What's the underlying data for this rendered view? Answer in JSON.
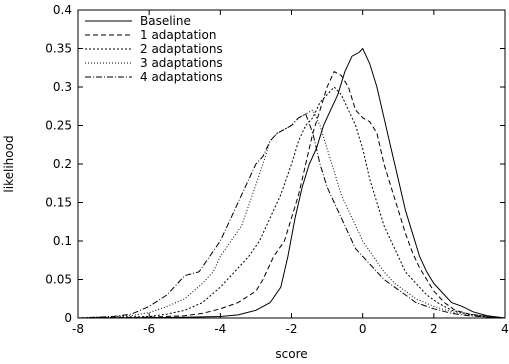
{
  "chart_data": {
    "type": "line",
    "title": "",
    "xlabel": "score",
    "ylabel": "likelihood",
    "xlim": [
      -8,
      4
    ],
    "ylim": [
      0,
      0.4
    ],
    "xticks": [
      -8,
      -6,
      -4,
      -2,
      0,
      2,
      4
    ],
    "yticks": [
      0,
      0.05,
      0.1,
      0.15,
      0.2,
      0.25,
      0.3,
      0.35,
      0.4
    ],
    "legend_position": "top-left",
    "grid": false,
    "series": [
      {
        "name": "Baseline",
        "dash": "solid",
        "x": [
          -8,
          -6,
          -5,
          -4,
          -3.5,
          -3,
          -2.6,
          -2.3,
          -2.1,
          -1.9,
          -1.7,
          -1.5,
          -1.3,
          -1.1,
          -0.9,
          -0.7,
          -0.5,
          -0.3,
          -0.1,
          0,
          0.2,
          0.4,
          0.6,
          0.8,
          1.0,
          1.2,
          1.4,
          1.6,
          1.8,
          2.0,
          2.2,
          2.5,
          2.8,
          3.1,
          3.5,
          4
        ],
        "y": [
          0,
          0.0005,
          0.001,
          0.002,
          0.004,
          0.01,
          0.02,
          0.04,
          0.08,
          0.13,
          0.17,
          0.2,
          0.22,
          0.25,
          0.27,
          0.29,
          0.32,
          0.34,
          0.345,
          0.35,
          0.33,
          0.3,
          0.26,
          0.22,
          0.18,
          0.14,
          0.11,
          0.08,
          0.06,
          0.045,
          0.035,
          0.02,
          0.015,
          0.008,
          0.003,
          0
        ]
      },
      {
        "name": "1 adaptation",
        "dash": "5,3",
        "x": [
          -8,
          -6,
          -5,
          -4.5,
          -4,
          -3.5,
          -3,
          -2.8,
          -2.5,
          -2.2,
          -2.0,
          -1.8,
          -1.6,
          -1.4,
          -1.2,
          -1.0,
          -0.8,
          -0.6,
          -0.4,
          -0.2,
          0,
          0.2,
          0.4,
          0.6,
          0.8,
          1.0,
          1.2,
          1.4,
          1.6,
          1.8,
          2.0,
          2.3,
          2.6,
          3.0,
          3.5,
          4
        ],
        "y": [
          0,
          0.001,
          0.003,
          0.006,
          0.012,
          0.02,
          0.035,
          0.05,
          0.08,
          0.1,
          0.13,
          0.16,
          0.2,
          0.24,
          0.27,
          0.3,
          0.32,
          0.315,
          0.3,
          0.27,
          0.26,
          0.255,
          0.24,
          0.2,
          0.17,
          0.14,
          0.11,
          0.085,
          0.065,
          0.05,
          0.035,
          0.02,
          0.01,
          0.005,
          0.002,
          0
        ]
      },
      {
        "name": "2 adaptations",
        "dash": "2,2",
        "x": [
          -8,
          -6,
          -5.5,
          -5,
          -4.5,
          -4,
          -3.6,
          -3.2,
          -2.9,
          -2.6,
          -2.3,
          -2.0,
          -1.8,
          -1.6,
          -1.4,
          -1.2,
          -1.0,
          -0.8,
          -0.6,
          -0.4,
          -0.2,
          0,
          0.2,
          0.4,
          0.6,
          0.8,
          1.0,
          1.2,
          1.5,
          1.8,
          2.1,
          2.5,
          3.0,
          3.5,
          4
        ],
        "y": [
          0,
          0.002,
          0.005,
          0.01,
          0.02,
          0.04,
          0.06,
          0.08,
          0.1,
          0.13,
          0.16,
          0.2,
          0.23,
          0.25,
          0.26,
          0.28,
          0.29,
          0.3,
          0.29,
          0.27,
          0.25,
          0.22,
          0.18,
          0.15,
          0.12,
          0.1,
          0.08,
          0.06,
          0.045,
          0.03,
          0.02,
          0.01,
          0.005,
          0.002,
          0
        ]
      },
      {
        "name": "3 adaptations",
        "dash": "1,2",
        "x": [
          -8,
          -6.5,
          -6,
          -5.5,
          -5,
          -4.5,
          -4.2,
          -4.0,
          -3.7,
          -3.4,
          -3.1,
          -2.8,
          -2.6,
          -2.4,
          -2.2,
          -2.0,
          -1.8,
          -1.6,
          -1.4,
          -1.2,
          -1.0,
          -0.8,
          -0.6,
          -0.4,
          -0.2,
          0,
          0.3,
          0.6,
          0.9,
          1.2,
          1.5,
          2.0,
          2.5,
          3.0,
          3.5,
          4
        ],
        "y": [
          0,
          0.003,
          0.007,
          0.015,
          0.025,
          0.045,
          0.06,
          0.08,
          0.1,
          0.12,
          0.16,
          0.2,
          0.23,
          0.24,
          0.245,
          0.25,
          0.26,
          0.265,
          0.27,
          0.25,
          0.22,
          0.19,
          0.16,
          0.14,
          0.12,
          0.1,
          0.08,
          0.06,
          0.045,
          0.035,
          0.025,
          0.015,
          0.008,
          0.004,
          0.001,
          0
        ]
      },
      {
        "name": "4 adaptations",
        "dash": "6,2,1,2",
        "x": [
          -8,
          -7,
          -6.5,
          -6,
          -5.5,
          -5.2,
          -5.0,
          -4.6,
          -4.3,
          -4.0,
          -3.7,
          -3.5,
          -3.3,
          -3.0,
          -2.8,
          -2.6,
          -2.4,
          -2.2,
          -2.0,
          -1.8,
          -1.6,
          -1.4,
          -1.2,
          -1.0,
          -0.8,
          -0.6,
          -0.4,
          -0.2,
          0,
          0.3,
          0.6,
          0.9,
          1.2,
          1.5,
          2.0,
          2.5,
          3.0,
          3.5,
          4
        ],
        "y": [
          0,
          0.002,
          0.005,
          0.015,
          0.03,
          0.045,
          0.055,
          0.06,
          0.08,
          0.1,
          0.13,
          0.15,
          0.17,
          0.2,
          0.21,
          0.23,
          0.24,
          0.245,
          0.25,
          0.26,
          0.265,
          0.24,
          0.2,
          0.17,
          0.15,
          0.13,
          0.11,
          0.09,
          0.08,
          0.065,
          0.05,
          0.04,
          0.03,
          0.02,
          0.012,
          0.006,
          0.003,
          0.001,
          0
        ]
      }
    ]
  }
}
